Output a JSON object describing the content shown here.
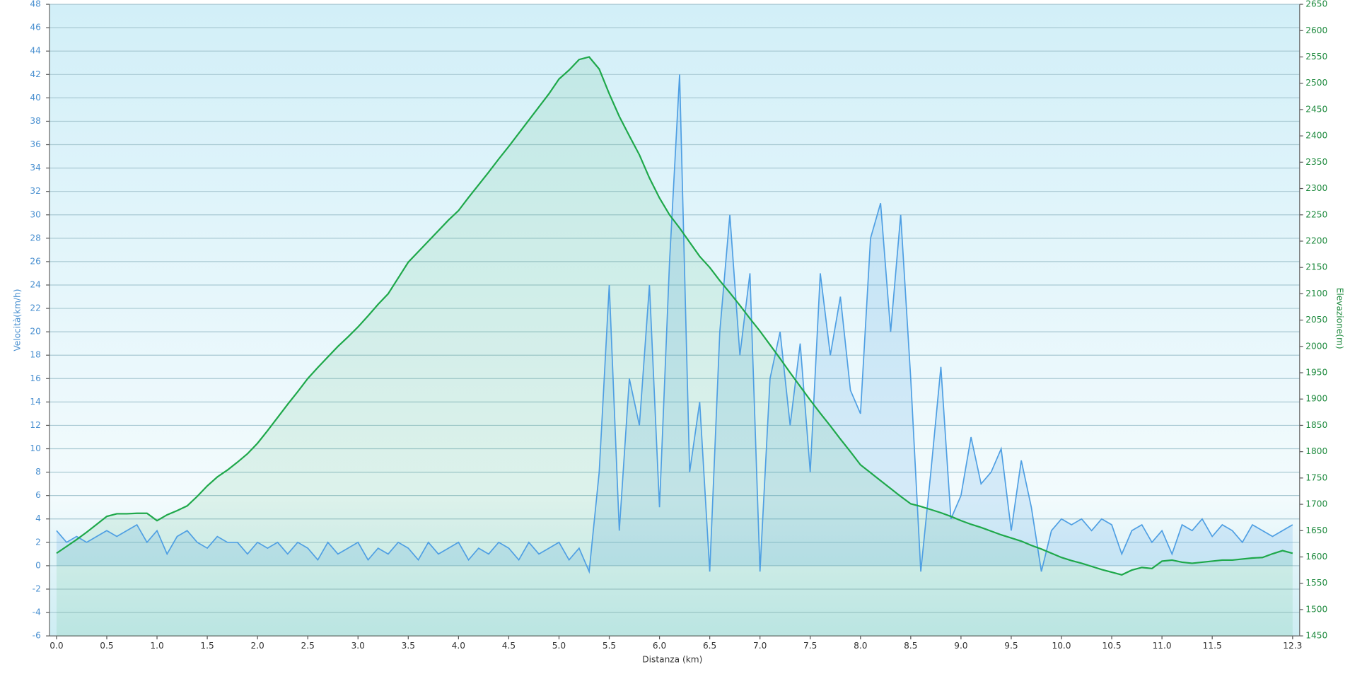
{
  "chart_data": {
    "type": "line",
    "x_label": "Distanza  (km)",
    "y_label": "Velocità(km/h)",
    "y2_label": "Elevazione(m)",
    "x": [
      0.0,
      0.1,
      0.2,
      0.3,
      0.4,
      0.5,
      0.6,
      0.7,
      0.8,
      0.9,
      1.0,
      1.1,
      1.2,
      1.3,
      1.4,
      1.5,
      1.6,
      1.7,
      1.8,
      1.9,
      2.0,
      2.1,
      2.2,
      2.3,
      2.4,
      2.5,
      2.6,
      2.7,
      2.8,
      2.9,
      3.0,
      3.1,
      3.2,
      3.3,
      3.4,
      3.5,
      3.6,
      3.7,
      3.8,
      3.9,
      4.0,
      4.1,
      4.2,
      4.3,
      4.4,
      4.5,
      4.6,
      4.7,
      4.8,
      4.9,
      5.0,
      5.1,
      5.2,
      5.3,
      5.4,
      5.5,
      5.6,
      5.7,
      5.8,
      5.9,
      6.0,
      6.1,
      6.2,
      6.3,
      6.4,
      6.5,
      6.6,
      6.7,
      6.8,
      6.9,
      7.0,
      7.1,
      7.2,
      7.3,
      7.4,
      7.5,
      7.6,
      7.7,
      7.8,
      7.9,
      8.0,
      8.1,
      8.2,
      8.3,
      8.4,
      8.5,
      8.6,
      8.7,
      8.8,
      8.9,
      9.0,
      9.1,
      9.2,
      9.3,
      9.4,
      9.5,
      9.6,
      9.7,
      9.8,
      9.9,
      10.0,
      10.1,
      10.2,
      10.3,
      10.4,
      10.5,
      10.6,
      10.7,
      10.8,
      10.9,
      11.0,
      11.1,
      11.2,
      11.3,
      11.4,
      11.5,
      11.6,
      11.7,
      11.8,
      11.9,
      12.0,
      12.1,
      12.2,
      12.3
    ],
    "series": [
      {
        "color": "#4f9fe3",
        "values": [
          3,
          2,
          2.5,
          2,
          2.5,
          3,
          2.5,
          3,
          3.5,
          2,
          3,
          1,
          2.5,
          3,
          2,
          1.5,
          2.5,
          2,
          2,
          1,
          2,
          1.5,
          2,
          1,
          2,
          1.5,
          0.5,
          2,
          1,
          1.5,
          2,
          0.5,
          1.5,
          1,
          2,
          1.5,
          0.5,
          2,
          1,
          1.5,
          2,
          0.5,
          1.5,
          1,
          2,
          1.5,
          0.5,
          2,
          1,
          1.5,
          2,
          0.5,
          1.5,
          -0.5,
          8,
          24,
          3,
          16,
          12,
          24,
          5,
          26,
          42,
          8,
          14,
          -0.5,
          20,
          30,
          18,
          25,
          -0.5,
          16,
          20,
          12,
          19,
          8,
          25,
          18,
          23,
          15,
          13,
          28,
          31,
          20,
          30,
          16,
          -0.5,
          8,
          17,
          4,
          6,
          11,
          7,
          8,
          10,
          3,
          9,
          5,
          -0.5,
          3,
          4,
          3.5,
          4,
          3,
          4,
          3.5,
          1,
          3,
          3.5,
          2,
          3,
          1,
          3.5,
          3,
          4,
          2.5,
          3.5,
          3,
          2,
          3.5,
          3,
          2.5,
          3,
          3.5
        ]
      },
      {
        "color": "#1ea84a",
        "axis": "y2",
        "values": [
          1607,
          1620,
          1633,
          1647,
          1662,
          1677,
          1682,
          1682,
          1683,
          1683,
          1669,
          1680,
          1688,
          1697,
          1715,
          1735,
          1752,
          1765,
          1780,
          1796,
          1816,
          1840,
          1865,
          1890,
          1914,
          1939,
          1960,
          1980,
          2000,
          2018,
          2037,
          2058,
          2080,
          2100,
          2130,
          2160,
          2180,
          2200,
          2220,
          2240,
          2258,
          2283,
          2307,
          2331,
          2356,
          2380,
          2405,
          2430,
          2455,
          2480,
          2508,
          2525,
          2545,
          2550,
          2527,
          2480,
          2437,
          2400,
          2364,
          2320,
          2282,
          2250,
          2225,
          2198,
          2171,
          2150,
          2125,
          2102,
          2078,
          2053,
          2029,
          2003,
          1977,
          1950,
          1924,
          1898,
          1873,
          1849,
          1824,
          1800,
          1775,
          1760,
          1745,
          1730,
          1715,
          1701,
          1696,
          1690,
          1684,
          1677,
          1669,
          1662,
          1656,
          1649,
          1642,
          1636,
          1630,
          1622,
          1615,
          1607,
          1599,
          1593,
          1588,
          1582,
          1576,
          1571,
          1566,
          1575,
          1580,
          1578,
          1592,
          1594,
          1590,
          1588,
          1590,
          1592,
          1594,
          1594,
          1596,
          1598,
          1599,
          1606,
          1612,
          1607
        ]
      }
    ],
    "xlim": [
      -0.07,
      12.37
    ],
    "xticks": [
      {
        "value": 0,
        "label": "0.0"
      },
      0.5,
      {
        "value": 1,
        "label": "1.0"
      },
      1.5,
      {
        "value": 2,
        "label": "2.0"
      },
      2.5,
      {
        "value": 3,
        "label": "3.0"
      },
      3.5,
      {
        "value": 4,
        "label": "4.0"
      },
      4.5,
      {
        "value": 5,
        "label": "5.0"
      },
      5.5,
      {
        "value": 6,
        "label": "6.0"
      },
      6.5,
      {
        "value": 7,
        "label": "7.0"
      },
      7.5,
      {
        "value": 8,
        "label": "8.0"
      },
      8.5,
      {
        "value": 9,
        "label": "9.0"
      },
      9.5,
      {
        "value": 10,
        "label": "10.0"
      },
      10.5,
      {
        "value": 11,
        "label": "11.0"
      },
      11.5,
      12.3
    ],
    "ylim": [
      -6,
      48
    ],
    "yticks": [
      -6,
      -4,
      -2,
      0,
      2,
      4,
      6,
      8,
      10,
      12,
      14,
      16,
      18,
      20,
      22,
      24,
      26,
      28,
      30,
      32,
      34,
      36,
      38,
      40,
      42,
      44,
      46,
      48
    ],
    "y2lim": [
      1450,
      2650
    ],
    "y2ticks": [
      1450,
      1500,
      1550,
      1600,
      1650,
      1700,
      1750,
      1800,
      1850,
      1900,
      1950,
      2000,
      2050,
      2100,
      2150,
      2200,
      2250,
      2300,
      2350,
      2400,
      2450,
      2500,
      2550,
      2600,
      2650
    ],
    "grid": true
  }
}
